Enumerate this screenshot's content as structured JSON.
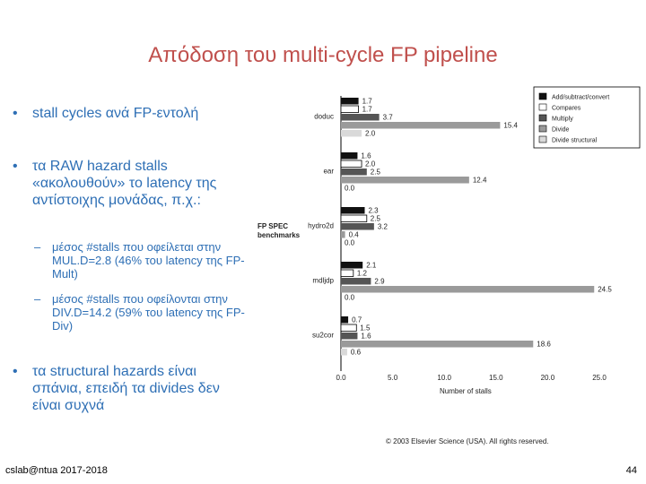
{
  "slide": {
    "title": "Απόδοση του multi-cycle FP pipeline",
    "bullets": [
      "stall cycles ανά FP-εντολή",
      "τα RAW hazard stalls «ακολουθούν» το latency της αντίστοιχης μονάδας, π.χ.:",
      "τα structural hazards είναι σπάνια, επειδή τα divides δεν είναι συχνά"
    ],
    "sub_bullets": [
      "μέσος #stalls που οφείλεται στην MUL.D=2.8 (46% του latency της FP-Mult)",
      "μέσος #stalls που οφείλονται στην DIV.D=14.2 (59% του latency της FP-Div)"
    ],
    "bullet_symbol": "•",
    "sub_symbol": "–",
    "footer_left": "cslab@ntua 2017-2018",
    "page_number": "44"
  },
  "chart_data": {
    "type": "bar",
    "orientation": "horizontal",
    "ylabel": "FP SPEC benchmarks",
    "xlabel": "Number of stalls",
    "xlim": [
      0,
      25
    ],
    "xticks": [
      "0.0",
      "5.0",
      "10.0",
      "15.0",
      "20.0",
      "25.0"
    ],
    "categories": [
      "doduc",
      "ear",
      "hydro2d",
      "mdljdp",
      "su2cor"
    ],
    "series": [
      {
        "name": "Add/subtract/convert",
        "color": "#111111",
        "values": [
          1.7,
          1.6,
          2.3,
          2.1,
          0.7
        ]
      },
      {
        "name": "Compares",
        "color": "#ffffff",
        "values": [
          1.7,
          2.0,
          2.5,
          1.2,
          1.5
        ]
      },
      {
        "name": "Multiply",
        "color": "#555555",
        "values": [
          3.7,
          2.5,
          3.2,
          2.9,
          1.6
        ]
      },
      {
        "name": "Divide",
        "color": "#9a9a9a",
        "values": [
          15.4,
          12.4,
          0.4,
          24.5,
          18.6
        ]
      },
      {
        "name": "Divide structural",
        "color": "#d9d9d9",
        "values": [
          2.0,
          0.0,
          0.0,
          0.0,
          0.6
        ]
      }
    ],
    "value_labels": [
      [
        "1.7",
        "1.7",
        "3.7",
        "15.4",
        "2.0"
      ],
      [
        "1.6",
        "2.0",
        "2.5",
        "12.4",
        "0.0"
      ],
      [
        "2.3",
        "2.5",
        "3.2",
        "0.4",
        "0.0"
      ],
      [
        "2.1",
        "1.2",
        "2.9",
        "24.5",
        "0.0"
      ],
      [
        "0.7",
        "1.5",
        "1.6",
        "18.6",
        "0.6"
      ]
    ],
    "legend_position": "top-right",
    "copyright": "© 2003 Elsevier Science (USA). All rights reserved."
  }
}
